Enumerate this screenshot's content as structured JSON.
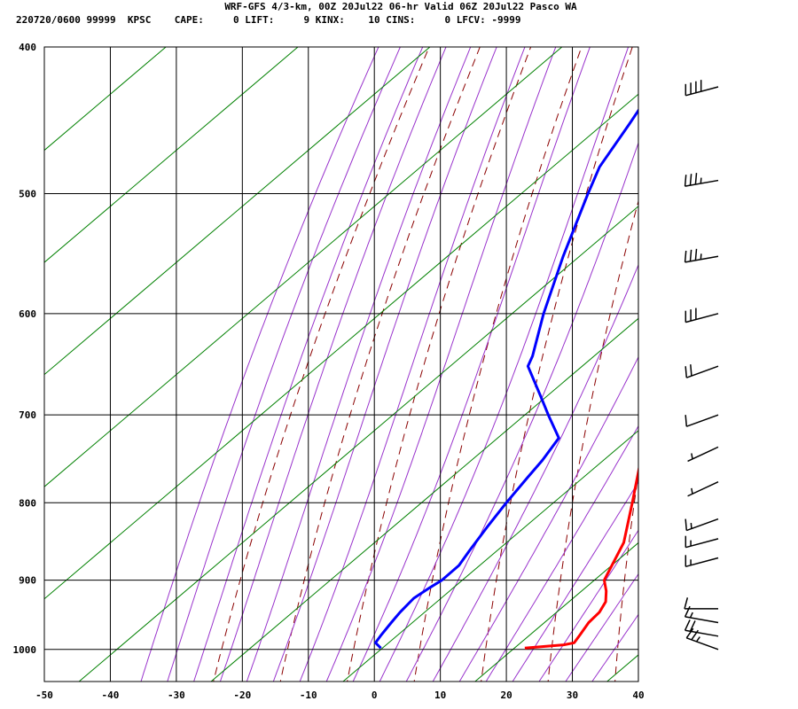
{
  "header": {
    "line1": "WRF-GFS 4/3-km, 00Z 20Jul22 06-hr Valid 06Z 20Jul22 Pasco WA",
    "line2": "220720/0600 99999  KPSC    CAPE:     0 LIFT:     9 KINX:    10 CINS:     0 LFCV: -9999"
  },
  "colors": {
    "temperature": "#ff0000",
    "dewpoint": "#0000ff",
    "dry_adiabat": "#8b0000",
    "moist_adiabat": "#9933cc",
    "mixing_ratio": "#008000",
    "grid": "#000000",
    "wind_barb": "#000000"
  },
  "chart_data": {
    "type": "line",
    "chart_kind": "skew-T log-P sounding",
    "x_axis": {
      "ticks": [
        -50,
        -40,
        -30,
        -20,
        -10,
        0,
        10,
        20,
        30,
        40
      ],
      "range": [
        -50,
        40
      ],
      "units": "deg C"
    },
    "y_axis": {
      "ticks": [
        400,
        500,
        600,
        700,
        800,
        900,
        1000
      ],
      "range": [
        400,
        1050
      ],
      "scale": "log",
      "units": "hPa"
    },
    "grid": true,
    "series": [
      {
        "key": "temperature",
        "points": [
          [
            998,
            22.6
          ],
          [
            993,
            28.0
          ],
          [
            990,
            29.3
          ],
          [
            978,
            29.0
          ],
          [
            960,
            28.5
          ],
          [
            945,
            28.6
          ],
          [
            930,
            28.0
          ],
          [
            915,
            26.5
          ],
          [
            900,
            24.6
          ],
          [
            850,
            22.0
          ],
          [
            800,
            17.4
          ],
          [
            750,
            12.4
          ],
          [
            700,
            7.6
          ],
          [
            650,
            3.4
          ],
          [
            600,
            0.4
          ],
          [
            550,
            -3.1
          ],
          [
            500,
            -7.2
          ],
          [
            450,
            -11.6
          ],
          [
            420,
            -14.8
          ]
        ]
      },
      {
        "key": "dewpoint",
        "points": [
          [
            998,
            0.8
          ],
          [
            990,
            -0.8
          ],
          [
            978,
            -1.1
          ],
          [
            960,
            -1.4
          ],
          [
            945,
            -1.6
          ],
          [
            925,
            -1.6
          ],
          [
            910,
            -0.7
          ],
          [
            900,
            0.0
          ],
          [
            880,
            0.4
          ],
          [
            860,
            -0.2
          ],
          [
            830,
            -1.0
          ],
          [
            800,
            -1.7
          ],
          [
            770,
            -2.2
          ],
          [
            750,
            -2.5
          ],
          [
            725,
            -3.3
          ],
          [
            700,
            -8.3
          ],
          [
            680,
            -12.3
          ],
          [
            650,
            -18.6
          ],
          [
            640,
            -19.4
          ],
          [
            600,
            -24.0
          ],
          [
            550,
            -29.5
          ],
          [
            500,
            -35.0
          ],
          [
            480,
            -37.2
          ],
          [
            450,
            -39.0
          ],
          [
            420,
            -41.1
          ]
        ]
      }
    ],
    "winds": [
      {
        "p": 1000,
        "dir": 290,
        "spd": 25
      },
      {
        "p": 980,
        "dir": 280,
        "spd": 20
      },
      {
        "p": 960,
        "dir": 280,
        "spd": 15
      },
      {
        "p": 940,
        "dir": 270,
        "spd": 10
      },
      {
        "p": 870,
        "dir": 255,
        "spd": 15
      },
      {
        "p": 845,
        "dir": 255,
        "spd": 15
      },
      {
        "p": 820,
        "dir": 250,
        "spd": 15
      },
      {
        "p": 775,
        "dir": 245,
        "spd": 5
      },
      {
        "p": 735,
        "dir": 245,
        "spd": 5
      },
      {
        "p": 700,
        "dir": 250,
        "spd": 10
      },
      {
        "p": 650,
        "dir": 250,
        "spd": 20
      },
      {
        "p": 600,
        "dir": 255,
        "spd": 30
      },
      {
        "p": 550,
        "dir": 260,
        "spd": 35
      },
      {
        "p": 490,
        "dir": 260,
        "spd": 35
      },
      {
        "p": 425,
        "dir": 255,
        "spd": 40
      }
    ]
  }
}
